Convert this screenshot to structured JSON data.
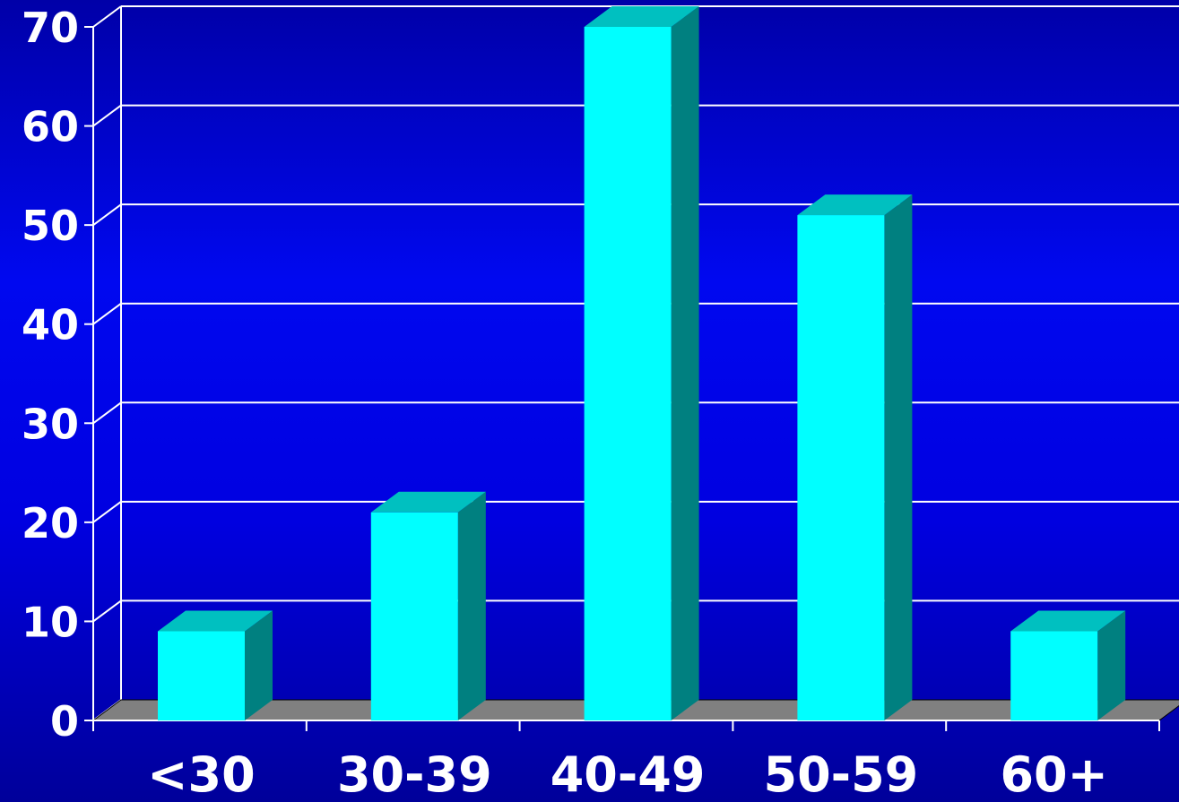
{
  "chart_data": {
    "type": "bar",
    "style": "3d",
    "categories": [
      "<30",
      "30-39",
      "40-49",
      "50-59",
      "60+"
    ],
    "values": [
      9,
      21,
      70,
      51,
      9
    ],
    "ylim": [
      0,
      70
    ],
    "yticks": [
      0,
      10,
      20,
      30,
      40,
      50,
      60,
      70
    ],
    "title": "",
    "xlabel": "",
    "ylabel": "",
    "grid": true,
    "legend": "none"
  },
  "colors": {
    "bar_front": "#00ffff",
    "bar_top": "#00c0c0",
    "bar_side": "#008080",
    "floor": "#808080",
    "grid": "#ffffff",
    "text": "#ffffff"
  }
}
